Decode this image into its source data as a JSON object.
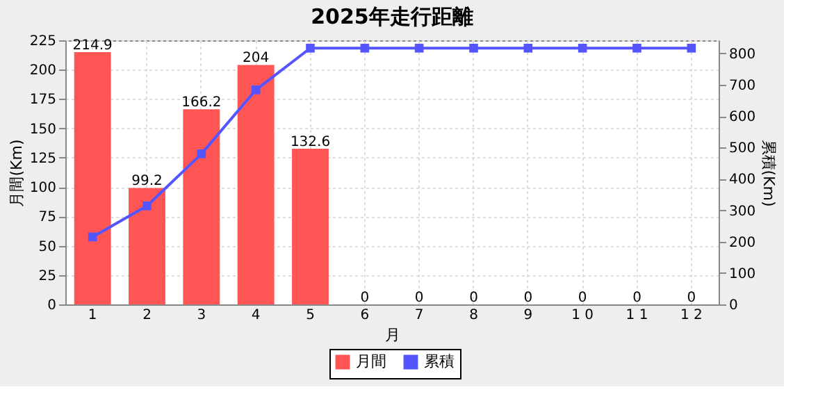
{
  "chart_data": {
    "type": "bar",
    "title": "2025年走行距離",
    "xlabel": "月",
    "ylabel": "月間(Km)",
    "y2label": "累積(Km)",
    "categories": [
      "1",
      "2",
      "3",
      "4",
      "5",
      "6",
      "7",
      "8",
      "9",
      "1 0",
      "1 1",
      "1 2"
    ],
    "series": [
      {
        "name": "月間",
        "color": "#ff5555",
        "values": [
          214.9,
          99.2,
          166.2,
          204,
          132.6,
          0,
          0,
          0,
          0,
          0,
          0,
          0
        ],
        "value_labels": [
          "214.9",
          "99.2",
          "166.2",
          "204",
          "132.6",
          "0",
          "0",
          "0",
          "0",
          "0",
          "0",
          "0"
        ]
      },
      {
        "name": "累積",
        "type": "line",
        "axis": "y2",
        "color": "#5555ff",
        "marker": "square",
        "values": [
          215,
          314,
          480,
          684,
          817,
          817,
          817,
          817,
          817,
          817,
          817,
          817
        ]
      }
    ],
    "ylim": [
      0,
      225
    ],
    "yticks": [
      0,
      25,
      50,
      75,
      100,
      125,
      150,
      175,
      200,
      225
    ],
    "y2lim": [
      0,
      842
    ],
    "y2ticks": [
      0,
      100,
      200,
      300,
      400,
      500,
      600,
      700,
      800
    ],
    "grid": true,
    "legend": "bottom"
  }
}
